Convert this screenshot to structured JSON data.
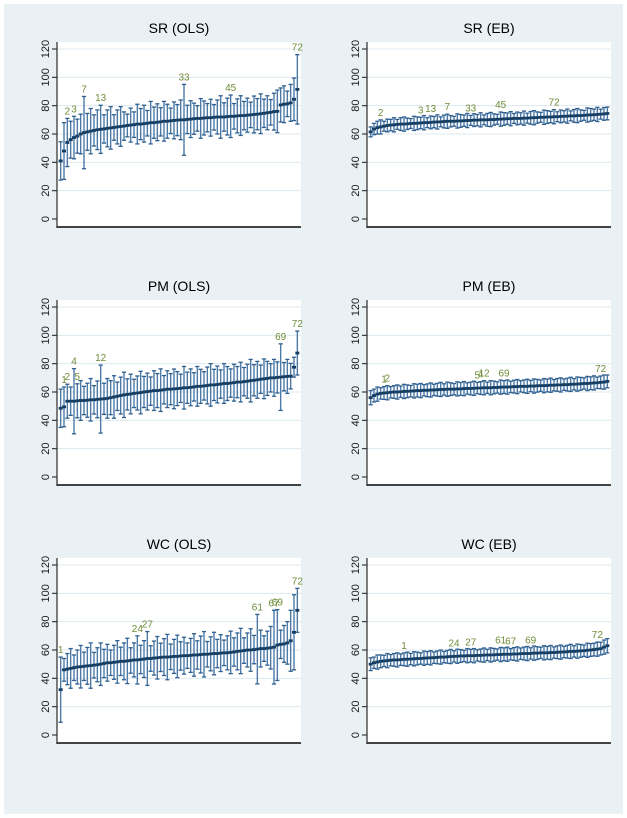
{
  "figure": {
    "background": "#e9f1f5",
    "plot_bg": "#ffffff",
    "grid_color": "#dde9f1",
    "axis_color": "#2a2a2a",
    "tick_label_color": "#1b1b1b",
    "ci_color": "#4d7aa7",
    "cap_color": "#2f5f8f",
    "marker_color": "#173f63",
    "point_label_color": "#708c3a"
  },
  "chart_data": [
    {
      "type": "scatter",
      "subtype": "caterpillar-confidence-intervals",
      "title": "SR (OLS)",
      "xlabel": "",
      "ylabel": "",
      "ylim": [
        0,
        120
      ],
      "yticks": [
        0,
        20,
        40,
        60,
        80,
        100,
        120
      ],
      "n": 72,
      "grid": true,
      "estimates": [
        41,
        48,
        54,
        56,
        57.5,
        58.5,
        60,
        61,
        61.5,
        62,
        62.5,
        63,
        63.3,
        63.6,
        64,
        64.3,
        64.6,
        65,
        65.3,
        65.6,
        66,
        66.3,
        66.6,
        67,
        67,
        67.3,
        67.6,
        68,
        68,
        68.3,
        68.6,
        69,
        69,
        69.3,
        69.6,
        69.8,
        70,
        70,
        70.3,
        70.5,
        70.8,
        71,
        71,
        71.3,
        71.5,
        71.5,
        71.8,
        72,
        72,
        72,
        72.3,
        72.5,
        72.5,
        72.8,
        73,
        73,
        73.3,
        73.5,
        73.8,
        74,
        74.3,
        74.6,
        75,
        75.3,
        75.8,
        76,
        80.5,
        81,
        81.3,
        82,
        84.5,
        91.5
      ],
      "ci_half_widths": [
        13.5,
        20,
        17,
        13,
        15,
        12,
        14,
        25.5,
        13,
        16,
        11,
        14,
        17,
        10,
        13,
        15,
        9,
        12,
        14,
        10,
        8,
        12,
        9,
        14,
        11,
        13,
        9,
        15,
        11,
        13,
        10,
        14,
        12,
        9,
        13,
        11,
        14,
        25,
        10,
        13,
        11,
        9,
        14,
        12,
        10,
        13,
        9,
        12,
        15,
        10,
        13,
        15,
        9,
        12,
        14,
        10,
        12,
        9,
        13,
        11,
        14,
        10,
        12,
        9,
        13,
        15,
        12,
        13,
        9,
        13,
        15,
        24.5
      ],
      "point_labels": [
        {
          "text": "2",
          "rank": 3
        },
        {
          "text": "3",
          "rank": 5
        },
        {
          "text": "7",
          "rank": 8
        },
        {
          "text": "13",
          "rank": 13
        },
        {
          "text": "33",
          "rank": 38
        },
        {
          "text": "45",
          "rank": 52
        },
        {
          "text": "72",
          "rank": 72
        }
      ]
    },
    {
      "type": "scatter",
      "subtype": "caterpillar-confidence-intervals",
      "title": "SR (EB)",
      "xlabel": "",
      "ylabel": "",
      "ylim": [
        0,
        120
      ],
      "yticks": [
        0,
        20,
        40,
        60,
        80,
        100,
        120
      ],
      "n": 72,
      "grid": true,
      "estimates": [
        61.5,
        63.5,
        64.5,
        65,
        65.5,
        66,
        66.3,
        66.5,
        66.8,
        67,
        67,
        67.2,
        67.4,
        67.5,
        67.6,
        67.8,
        68,
        68,
        68.2,
        68.4,
        68.5,
        68.6,
        68.8,
        69,
        69,
        69,
        69.2,
        69.2,
        69.4,
        69.5,
        69.6,
        69.8,
        69.8,
        70,
        70,
        70,
        70.2,
        70.2,
        70.4,
        70.5,
        70.6,
        70.8,
        70.8,
        71,
        71,
        71,
        71.2,
        71.2,
        71.4,
        71.5,
        71.6,
        71.8,
        71.8,
        72,
        72,
        72.2,
        72.2,
        72.4,
        72.5,
        72.6,
        72.8,
        72.8,
        73,
        73,
        73.2,
        73.4,
        73.5,
        73.6,
        73.8,
        74,
        74.2,
        74.5
      ],
      "ci_half_widths": [
        3.5,
        4,
        4.5,
        5,
        3.5,
        4.5,
        4,
        5,
        3.5,
        4.5,
        5,
        4,
        3.5,
        5,
        4.5,
        4,
        5,
        3.5,
        4.5,
        4,
        5,
        3.5,
        4.5,
        5,
        4,
        3.5,
        5,
        4.5,
        4,
        5,
        3.5,
        4.5,
        4,
        5,
        3.5,
        4.5,
        5,
        4,
        3.5,
        5,
        4.5,
        4,
        5,
        3.5,
        4.5,
        4,
        5,
        3.5,
        4.5,
        5,
        4,
        3.5,
        5,
        4.5,
        4,
        5,
        3.5,
        4.5,
        4,
        5,
        3.5,
        4.5,
        5,
        4,
        3.5,
        5,
        4.5,
        4,
        5,
        3.5,
        4.5,
        4.5
      ],
      "point_labels": [
        {
          "text": "2",
          "rank": 4
        },
        {
          "text": "3",
          "rank": 16
        },
        {
          "text": "13",
          "rank": 19
        },
        {
          "text": "7",
          "rank": 24
        },
        {
          "text": "33",
          "rank": 31
        },
        {
          "text": "45",
          "rank": 40
        },
        {
          "text": "72",
          "rank": 56
        }
      ]
    },
    {
      "type": "scatter",
      "subtype": "caterpillar-confidence-intervals",
      "title": "PM (OLS)",
      "xlabel": "",
      "ylabel": "",
      "ylim": [
        0,
        120
      ],
      "yticks": [
        0,
        20,
        40,
        60,
        80,
        100,
        120
      ],
      "n": 72,
      "grid": true,
      "estimates": [
        48.5,
        49.5,
        53.5,
        53.5,
        53.5,
        53.8,
        54,
        54,
        54.2,
        54.5,
        54.5,
        54.8,
        55,
        55.2,
        55.5,
        56,
        56.5,
        57,
        57.5,
        58,
        58.3,
        58.6,
        59,
        59.3,
        59.6,
        60,
        60.3,
        60.6,
        61,
        61,
        61.3,
        61.6,
        62,
        62,
        62.2,
        62.4,
        62.6,
        63,
        63,
        63.3,
        63.6,
        64,
        64,
        64.3,
        64.6,
        65,
        65,
        65.3,
        65.6,
        66,
        66,
        66.3,
        66.6,
        67,
        67,
        67.3,
        67.6,
        68,
        68.3,
        68.6,
        69,
        69.3,
        69.6,
        70,
        70,
        70.3,
        70.5,
        70.8,
        71,
        71.2,
        77.5,
        87.5
      ],
      "ci_half_widths": [
        13.5,
        14,
        12,
        10,
        23,
        12,
        14,
        10,
        12,
        15,
        10,
        13,
        24,
        11,
        14,
        12,
        15,
        10,
        13,
        16,
        11,
        14,
        10,
        12,
        15,
        11,
        13,
        10,
        14,
        12,
        15,
        10,
        13,
        11,
        14,
        12,
        10,
        15,
        11,
        13,
        10,
        14,
        12,
        10,
        13,
        15,
        11,
        13,
        10,
        14,
        12,
        10,
        13,
        11,
        14,
        10,
        12,
        15,
        11,
        13,
        10,
        14,
        12,
        10,
        13,
        11,
        23.5,
        10,
        12,
        9,
        7,
        15.5
      ],
      "point_labels": [
        {
          "text": "1",
          "rank": 2
        },
        {
          "text": "2",
          "rank": 3
        },
        {
          "text": "4",
          "rank": 5
        },
        {
          "text": "5",
          "rank": 6
        },
        {
          "text": "12",
          "rank": 13
        },
        {
          "text": "69",
          "rank": 67
        },
        {
          "text": "72",
          "rank": 72
        }
      ]
    },
    {
      "type": "scatter",
      "subtype": "caterpillar-confidence-intervals",
      "title": "PM (EB)",
      "xlabel": "",
      "ylabel": "",
      "ylim": [
        0,
        120
      ],
      "yticks": [
        0,
        20,
        40,
        60,
        80,
        100,
        120
      ],
      "n": 72,
      "grid": true,
      "estimates": [
        56,
        57.5,
        58.5,
        59,
        59.3,
        59.5,
        59.8,
        60,
        60,
        60.2,
        60.4,
        60.5,
        60.6,
        60.8,
        61,
        61,
        61.2,
        61.2,
        61.4,
        61.5,
        61.6,
        61.8,
        61.8,
        62,
        62,
        62,
        62.2,
        62.2,
        62.4,
        62.5,
        62.5,
        62.6,
        62.8,
        62.8,
        63,
        63,
        63,
        63.2,
        63.2,
        63.4,
        63.5,
        63.5,
        63.6,
        63.8,
        63.8,
        64,
        64,
        64,
        64.2,
        64.2,
        64.4,
        64.5,
        64.5,
        64.6,
        64.8,
        64.8,
        65,
        65,
        65.2,
        65.2,
        65.4,
        65.5,
        65.6,
        65.8,
        66,
        66,
        66.2,
        66.4,
        66.5,
        66.8,
        67,
        67.5
      ],
      "ci_half_widths": [
        5,
        4.5,
        5,
        4,
        4.5,
        5,
        4,
        4.5,
        5,
        4,
        5,
        4.5,
        4,
        5,
        4.5,
        5,
        4,
        4.5,
        5,
        4,
        4.5,
        5,
        4,
        5,
        4.5,
        4,
        5,
        4.5,
        5,
        4,
        4.5,
        5,
        4,
        4.5,
        5,
        4,
        5,
        4.5,
        4,
        5,
        4.5,
        5,
        4,
        4.5,
        5,
        4,
        4.5,
        5,
        4,
        5,
        4.5,
        4,
        5,
        4.5,
        5,
        4,
        4.5,
        5,
        4,
        4.5,
        5,
        4,
        5,
        4.5,
        4,
        5,
        4.5,
        5,
        4,
        4.5,
        5,
        4.5
      ],
      "point_labels": [
        {
          "text": "1",
          "rank": 5
        },
        {
          "text": "2",
          "rank": 6
        },
        {
          "text": "5",
          "rank": 33
        },
        {
          "text": "4",
          "rank": 34
        },
        {
          "text": "12",
          "rank": 35
        },
        {
          "text": "69",
          "rank": 41
        },
        {
          "text": "72",
          "rank": 70
        }
      ]
    },
    {
      "type": "scatter",
      "subtype": "caterpillar-confidence-intervals",
      "title": "WC (OLS)",
      "xlabel": "",
      "ylabel": "",
      "ylim": [
        0,
        120
      ],
      "yticks": [
        0,
        20,
        40,
        60,
        80,
        100,
        120
      ],
      "n": 72,
      "grid": true,
      "estimates": [
        32,
        46,
        46.5,
        47,
        47.5,
        48,
        48.2,
        48.5,
        48.8,
        49,
        49.3,
        49.6,
        50,
        50.5,
        51,
        51,
        51.3,
        51.6,
        52,
        52,
        52.3,
        52.6,
        53,
        53,
        53.3,
        53.6,
        54,
        54,
        54.3,
        54.5,
        54.8,
        55,
        55,
        55.2,
        55.5,
        55.5,
        55.8,
        56,
        56,
        56.2,
        56.5,
        56.5,
        56.8,
        57,
        57,
        57.3,
        57.5,
        57.5,
        57.8,
        58,
        58,
        58.3,
        58.6,
        59,
        59.3,
        59.6,
        60,
        60,
        60.3,
        60.6,
        61,
        61,
        61.3,
        61.6,
        62,
        63.5,
        64,
        64.3,
        65,
        66.5,
        72.5,
        88
      ],
      "ci_half_widths": [
        23,
        8,
        11,
        14,
        9,
        12,
        15,
        10,
        13,
        16,
        9,
        12,
        15,
        10,
        13,
        9,
        12,
        15,
        10,
        13,
        16,
        9,
        12,
        17,
        10,
        13,
        19,
        9,
        12,
        15,
        10,
        13,
        16,
        9,
        12,
        15,
        10,
        13,
        9,
        12,
        15,
        10,
        13,
        16,
        9,
        12,
        15,
        10,
        13,
        9,
        12,
        15,
        10,
        13,
        16,
        9,
        12,
        15,
        10,
        24.5,
        13,
        9,
        12,
        15,
        26,
        25,
        10,
        13,
        15,
        21.5,
        26.5,
        15.5
      ],
      "point_labels": [
        {
          "text": "1",
          "rank": 1
        },
        {
          "text": "24",
          "rank": 24
        },
        {
          "text": "27",
          "rank": 27
        },
        {
          "text": "61",
          "rank": 60
        },
        {
          "text": "67",
          "rank": 65
        },
        {
          "text": "69",
          "rank": 66
        },
        {
          "text": "72",
          "rank": 72
        }
      ]
    },
    {
      "type": "scatter",
      "subtype": "caterpillar-confidence-intervals",
      "title": "WC (EB)",
      "xlabel": "",
      "ylabel": "",
      "ylim": [
        0,
        120
      ],
      "yticks": [
        0,
        20,
        40,
        60,
        80,
        100,
        120
      ],
      "n": 72,
      "grid": true,
      "estimates": [
        50,
        51,
        51.5,
        52,
        52.3,
        52.5,
        52.8,
        53,
        53,
        53.2,
        53.4,
        53.5,
        53.6,
        53.8,
        54,
        54,
        54.2,
        54.4,
        54.5,
        54.6,
        54.8,
        55,
        55,
        55.2,
        55.4,
        55.5,
        55.6,
        55.8,
        55.8,
        56,
        56,
        56,
        56.2,
        56.2,
        56.4,
        56.5,
        56.5,
        56.6,
        56.8,
        56.8,
        57,
        57,
        57,
        57.2,
        57.2,
        57.4,
        57.5,
        57.5,
        57.6,
        57.8,
        57.8,
        58,
        58,
        58,
        58.2,
        58.2,
        58.4,
        58.5,
        58.6,
        58.8,
        59,
        59,
        59.2,
        59.4,
        59.5,
        59.8,
        60,
        60.3,
        60.6,
        61,
        62,
        63
      ],
      "ci_half_widths": [
        4.5,
        4,
        5,
        4.5,
        4,
        5,
        4,
        4.5,
        5,
        4,
        4.5,
        5,
        4,
        5,
        4.5,
        4,
        5,
        4.5,
        5,
        4,
        4.5,
        5,
        4,
        4.5,
        5,
        4,
        5,
        4.5,
        4,
        5,
        4.5,
        5,
        4,
        4.5,
        5,
        4,
        5,
        4.5,
        4,
        5,
        4.5,
        5,
        4,
        4.5,
        5,
        4,
        4.5,
        5,
        4,
        5,
        4.5,
        4,
        5,
        4.5,
        5,
        4,
        4.5,
        5,
        4,
        4.5,
        5,
        4,
        5,
        4.5,
        4,
        5,
        4.5,
        4.5,
        5,
        4.5,
        5,
        5
      ],
      "point_labels": [
        {
          "text": "1",
          "rank": 11
        },
        {
          "text": "24",
          "rank": 26
        },
        {
          "text": "27",
          "rank": 31
        },
        {
          "text": "61",
          "rank": 40
        },
        {
          "text": "67",
          "rank": 43
        },
        {
          "text": "69",
          "rank": 49
        },
        {
          "text": "72",
          "rank": 69
        }
      ]
    }
  ]
}
